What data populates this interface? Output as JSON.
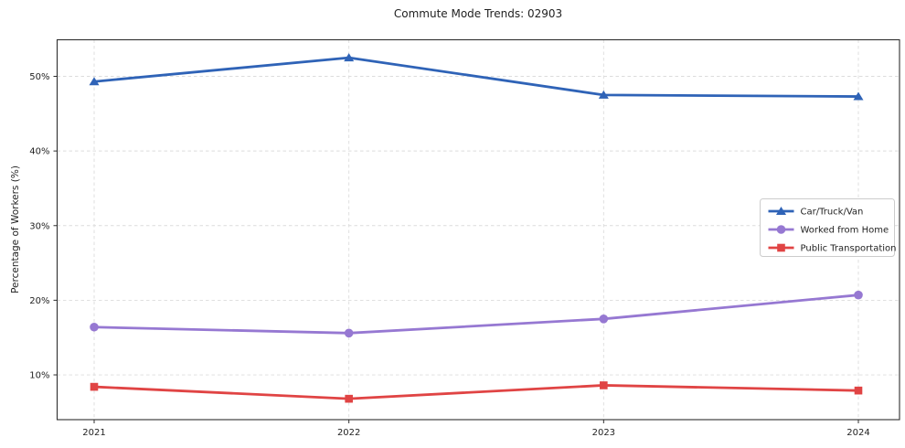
{
  "chart_data": {
    "type": "line",
    "title": "Commute Mode Trends: 02903",
    "xlabel": "",
    "ylabel": "Percentage of Workers (%)",
    "categories": [
      "2021",
      "2022",
      "2023",
      "2024"
    ],
    "series": [
      {
        "name": "Car/Truck/Van",
        "marker": "triangle",
        "color": "#2f63b7",
        "values": [
          49.3,
          52.5,
          47.5,
          47.3
        ]
      },
      {
        "name": "Worked from Home",
        "marker": "circle",
        "color": "#9678d2",
        "values": [
          16.4,
          15.6,
          17.5,
          20.7
        ]
      },
      {
        "name": "Public Transportation",
        "marker": "square",
        "color": "#e04444",
        "values": [
          8.4,
          6.8,
          8.6,
          7.9
        ]
      }
    ],
    "ylim": [
      4.0,
      54.9
    ],
    "yticks": [
      10,
      20,
      30,
      40,
      50
    ],
    "ytick_suffix": "%",
    "grid": true,
    "grid_style": "dashed",
    "legend_position": "center-right"
  },
  "colors": {
    "grid": "#dcdcdc",
    "spine": "#2f2f2f",
    "text": "#1f1f1f",
    "legend_border": "#cccccc",
    "background": "#ffffff"
  }
}
